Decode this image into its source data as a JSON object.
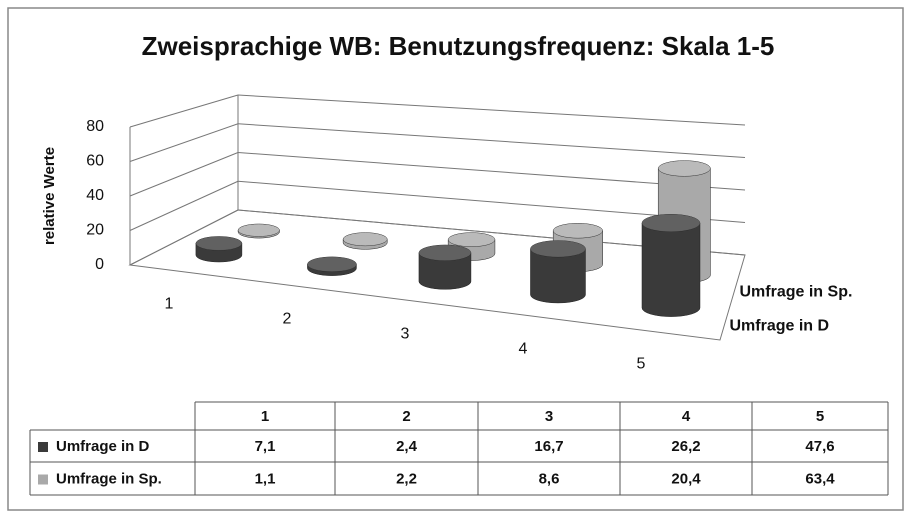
{
  "chart_data": {
    "type": "bar3d",
    "title": "Zweisprachige WB: Benutzungsfrequenz:  Skala 1-5",
    "y_label": "relative Werte",
    "categories": [
      "1",
      "2",
      "3",
      "4",
      "5"
    ],
    "series": [
      {
        "name": "Umfrage in D",
        "color": "#3a3a3a",
        "values": [
          7.1,
          2.4,
          16.7,
          26.2,
          47.6
        ],
        "value_labels": [
          "7,1",
          "2,4",
          "16,7",
          "26,2",
          "47,6"
        ]
      },
      {
        "name": "Umfrage in Sp.",
        "color": "#a9a9a9",
        "values": [
          1.1,
          2.2,
          8.6,
          20.4,
          63.4
        ],
        "value_labels": [
          "1,1",
          "2,2",
          "8,6",
          "20,4",
          "63,4"
        ]
      }
    ],
    "ylim": [
      0,
      80
    ],
    "yticks": [
      0,
      20,
      40,
      60,
      80
    ],
    "grid": true,
    "data_table": true
  }
}
